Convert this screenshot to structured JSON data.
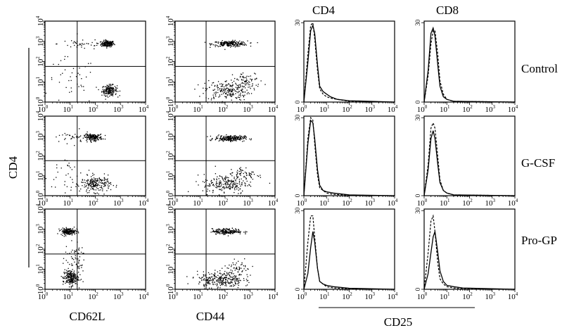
{
  "figure": {
    "column_headers": [
      "CD4",
      "CD8"
    ],
    "row_labels": [
      "Control",
      "G-CSF",
      "Pro-GP"
    ],
    "ylabel_shared": "CD4",
    "xlabels": {
      "col1": "CD62L",
      "col2": "CD44",
      "histograms": "CD25"
    },
    "dot_axis_ticks": [
      "0",
      "1",
      "2",
      "3",
      "4"
    ],
    "hist_y_ticks": [
      "0",
      "30"
    ]
  },
  "chart_data": [
    {
      "type": "scatter",
      "panel": "CD62L vs CD4 (Control)",
      "xlabel": "CD62L",
      "ylabel": "CD4",
      "xscale": "log",
      "yscale": "log",
      "xlim": [
        1,
        10000
      ],
      "ylim": [
        1,
        10000
      ],
      "clusters": [
        {
          "x": 300,
          "y": 800,
          "n": 160,
          "sx": 0.13,
          "sy": 0.08
        },
        {
          "x": 350,
          "y": 4,
          "n": 180,
          "sx": 0.15,
          "sy": 0.13
        },
        {
          "x": 30,
          "y": 800,
          "n": 40,
          "sx": 0.5,
          "sy": 0.15
        },
        {
          "x": 10,
          "y": 10,
          "n": 40,
          "sx": 0.5,
          "sy": 0.6
        }
      ]
    },
    {
      "type": "scatter",
      "panel": "CD44 vs CD4 (Control)",
      "xlabel": "CD44",
      "ylabel": "CD4",
      "xscale": "log",
      "yscale": "log",
      "xlim": [
        1,
        10000
      ],
      "ylim": [
        1,
        10000
      ],
      "clusters": [
        {
          "x": 150,
          "y": 800,
          "n": 220,
          "sx": 0.35,
          "sy": 0.07
        },
        {
          "x": 120,
          "y": 4,
          "n": 220,
          "sx": 0.45,
          "sy": 0.25
        },
        {
          "x": 800,
          "y": 12,
          "n": 60,
          "sx": 0.3,
          "sy": 0.2
        }
      ]
    },
    {
      "type": "line",
      "panel": "CD25 histogram CD4 (Control)",
      "xscale": "log",
      "xlim": [
        1,
        10000
      ],
      "ylim": [
        0,
        30
      ],
      "series": [
        {
          "style": "solid",
          "x": [
            1,
            1.5,
            2,
            2.5,
            3,
            4,
            5,
            7,
            10,
            15,
            30,
            100,
            10000
          ],
          "values": [
            0,
            15,
            27,
            29,
            26,
            14,
            6,
            4,
            3,
            2,
            1,
            0.5,
            0
          ]
        },
        {
          "style": "dashed",
          "x": [
            1,
            1.5,
            2,
            2.5,
            3,
            4,
            5,
            7,
            10,
            15,
            30,
            100,
            10000
          ],
          "values": [
            0,
            18,
            29,
            30,
            24,
            12,
            5,
            3,
            2,
            1.5,
            1,
            0.3,
            0
          ]
        }
      ]
    },
    {
      "type": "line",
      "panel": "CD25 histogram CD8 (Control)",
      "xscale": "log",
      "xlim": [
        1,
        10000
      ],
      "ylim": [
        0,
        30
      ],
      "series": [
        {
          "style": "solid",
          "x": [
            1,
            1.5,
            2,
            2.5,
            3,
            4,
            5,
            7,
            10,
            20,
            10000
          ],
          "values": [
            0,
            12,
            26,
            28,
            25,
            14,
            6,
            2,
            1,
            0.3,
            0
          ]
        },
        {
          "style": "dashed",
          "x": [
            1,
            1.5,
            2,
            2.5,
            3,
            4,
            5,
            7,
            10,
            20,
            10000
          ],
          "values": [
            0,
            10,
            22,
            27,
            27,
            18,
            8,
            3,
            1,
            0.3,
            0
          ]
        }
      ]
    },
    {
      "type": "scatter",
      "panel": "CD62L vs CD4 (G-CSF)",
      "xlabel": "CD62L",
      "ylabel": "CD4",
      "xscale": "log",
      "yscale": "log",
      "xlim": [
        1,
        10000
      ],
      "ylim": [
        1,
        10000
      ],
      "clusters": [
        {
          "x": 80,
          "y": 900,
          "n": 170,
          "sx": 0.18,
          "sy": 0.08
        },
        {
          "x": 100,
          "y": 4,
          "n": 200,
          "sx": 0.3,
          "sy": 0.2
        },
        {
          "x": 10,
          "y": 900,
          "n": 30,
          "sx": 0.4,
          "sy": 0.15
        },
        {
          "x": 10,
          "y": 10,
          "n": 40,
          "sx": 0.5,
          "sy": 0.6
        }
      ]
    },
    {
      "type": "scatter",
      "panel": "CD44 vs CD4 (G-CSF)",
      "xlabel": "CD44",
      "ylabel": "CD4",
      "xscale": "log",
      "yscale": "log",
      "xlim": [
        1,
        10000
      ],
      "ylim": [
        1,
        10000
      ],
      "clusters": [
        {
          "x": 150,
          "y": 800,
          "n": 220,
          "sx": 0.3,
          "sy": 0.07
        },
        {
          "x": 100,
          "y": 4,
          "n": 200,
          "sx": 0.45,
          "sy": 0.25
        },
        {
          "x": 600,
          "y": 12,
          "n": 70,
          "sx": 0.35,
          "sy": 0.2
        }
      ]
    },
    {
      "type": "line",
      "panel": "CD25 histogram CD4 (G-CSF)",
      "xscale": "log",
      "xlim": [
        1,
        10000
      ],
      "ylim": [
        0,
        30
      ],
      "series": [
        {
          "style": "solid",
          "x": [
            1,
            1.5,
            2,
            2.5,
            3,
            4,
            5,
            7,
            10,
            20,
            100,
            10000
          ],
          "values": [
            0,
            20,
            29,
            28,
            22,
            10,
            4,
            2,
            1.5,
            1,
            0.3,
            0
          ]
        },
        {
          "style": "dashed",
          "x": [
            1,
            1.5,
            2,
            2.5,
            3,
            4,
            5,
            7,
            10,
            20,
            100,
            10000
          ],
          "values": [
            0,
            22,
            30,
            29,
            20,
            8,
            3,
            2,
            1,
            0.5,
            0.2,
            0
          ]
        }
      ]
    },
    {
      "type": "line",
      "panel": "CD25 histogram CD8 (G-CSF)",
      "xscale": "log",
      "xlim": [
        1,
        10000
      ],
      "ylim": [
        0,
        30
      ],
      "series": [
        {
          "style": "solid",
          "x": [
            1,
            1.5,
            2,
            2.5,
            3,
            4,
            5,
            7,
            10,
            20,
            10000
          ],
          "values": [
            0,
            10,
            22,
            25,
            22,
            12,
            5,
            2,
            1,
            0.3,
            0
          ]
        },
        {
          "style": "dashed",
          "x": [
            1,
            1.5,
            2,
            2.5,
            3,
            4,
            5,
            7,
            10,
            20,
            10000
          ],
          "values": [
            0,
            12,
            26,
            28,
            26,
            15,
            6,
            2,
            1,
            0.3,
            0
          ]
        }
      ]
    },
    {
      "type": "scatter",
      "panel": "CD62L vs CD4 (Pro-GP)",
      "xlabel": "CD62L",
      "ylabel": "CD4",
      "xscale": "log",
      "yscale": "log",
      "xlim": [
        1,
        10000
      ],
      "ylim": [
        1,
        10000
      ],
      "clusters": [
        {
          "x": 8,
          "y": 800,
          "n": 170,
          "sx": 0.15,
          "sy": 0.08
        },
        {
          "x": 10,
          "y": 4,
          "n": 220,
          "sx": 0.15,
          "sy": 0.2
        },
        {
          "x": 15,
          "y": 40,
          "n": 60,
          "sx": 0.2,
          "sy": 0.4
        }
      ]
    },
    {
      "type": "scatter",
      "panel": "CD44 vs CD4 (Pro-GP)",
      "xlabel": "CD44",
      "ylabel": "CD4",
      "xscale": "log",
      "yscale": "log",
      "xlim": [
        1,
        10000
      ],
      "ylim": [
        1,
        10000
      ],
      "clusters": [
        {
          "x": 120,
          "y": 800,
          "n": 200,
          "sx": 0.3,
          "sy": 0.07
        },
        {
          "x": 60,
          "y": 3,
          "n": 260,
          "sx": 0.45,
          "sy": 0.2
        },
        {
          "x": 300,
          "y": 10,
          "n": 70,
          "sx": 0.35,
          "sy": 0.2
        }
      ]
    },
    {
      "type": "line",
      "panel": "CD25 histogram CD4 (Pro-GP)",
      "xscale": "log",
      "xlim": [
        1,
        10000
      ],
      "ylim": [
        0,
        30
      ],
      "series": [
        {
          "style": "solid",
          "x": [
            1,
            1.5,
            2,
            2.5,
            3,
            4,
            5,
            7,
            10,
            20,
            100,
            10000
          ],
          "values": [
            0,
            6,
            16,
            22,
            18,
            8,
            3,
            2,
            1.5,
            1,
            0.4,
            0
          ]
        },
        {
          "style": "dashed",
          "x": [
            1,
            1.5,
            2,
            2.5,
            3,
            4,
            5,
            7,
            10,
            20,
            100,
            10000
          ],
          "values": [
            0,
            18,
            28,
            28,
            20,
            8,
            3,
            2,
            1,
            0.5,
            0.2,
            0
          ]
        }
      ]
    },
    {
      "type": "line",
      "panel": "CD25 histogram CD8 (Pro-GP)",
      "xscale": "log",
      "xlim": [
        1,
        10000
      ],
      "ylim": [
        0,
        30
      ],
      "series": [
        {
          "style": "solid",
          "x": [
            1,
            1.5,
            2,
            2.5,
            3,
            4,
            5,
            7,
            10,
            20,
            50,
            10000
          ],
          "values": [
            0,
            6,
            14,
            20,
            22,
            14,
            7,
            3,
            1.5,
            1,
            0.5,
            0
          ]
        },
        {
          "style": "dashed",
          "x": [
            1,
            1.5,
            2,
            2.5,
            3,
            4,
            5,
            7,
            10,
            20,
            50,
            10000
          ],
          "values": [
            0,
            14,
            26,
            28,
            22,
            10,
            4,
            2,
            1,
            0.5,
            0.2,
            0
          ]
        }
      ]
    }
  ]
}
